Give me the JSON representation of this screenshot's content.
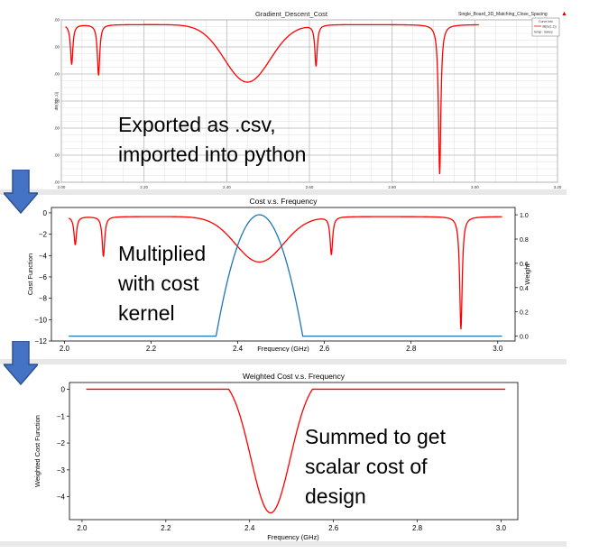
{
  "colors": {
    "red": "#ff0000",
    "blue": "#1f77b4",
    "arrow": "#4472c4"
  },
  "chart_data": [
    {
      "type": "line",
      "title": "Gradient_Descent_Cost",
      "subtitle": "Single_Board_3D_Matching_Close_Spacing",
      "legend_box": {
        "header": "Curve Info",
        "entry": "dB(S(1,1))",
        "setup": "Setup : Sweep"
      },
      "xlabel": "",
      "ylabel": "dB(S(1,1))",
      "xlim": [
        2.0,
        3.2
      ],
      "ylim": [
        -12.0,
        0.0
      ],
      "x_ticks": [
        "2.00",
        "2.20",
        "2.40",
        "2.60",
        "2.80",
        "3.00",
        "3.20"
      ],
      "y_ticks": [
        "0.00",
        "-2.00",
        "-4.00",
        "-6.00",
        "-8.00",
        "-10.00",
        "-12.00"
      ],
      "grid": true,
      "series": [
        {
          "color": "#ff0000",
          "notches": [
            [
              2.025,
              -3.3
            ],
            [
              2.09,
              -4.1
            ],
            [
              2.616,
              -3.4
            ],
            [
              2.915,
              -11.4
            ]
          ],
          "hump": {
            "center": 2.45,
            "depth": -4.6,
            "width": 0.055
          },
          "baseline": -0.35,
          "x_range": [
            2.01,
            3.01
          ]
        }
      ]
    },
    {
      "type": "line",
      "title": "Cost v.s. Frequency",
      "xlabel": "Frequency (GHz)",
      "ylabel": "Cost Function",
      "ylabel_right": "Weight",
      "xlim": [
        1.97,
        3.04
      ],
      "ylim": [
        -12,
        0.5
      ],
      "ylim_right": [
        -0.04,
        1.06
      ],
      "x_ticks": [
        "2.0",
        "2.2",
        "2.4",
        "2.6",
        "2.8",
        "3.0"
      ],
      "y_ticks": [
        "0",
        "−2",
        "−4",
        "−6",
        "−8",
        "−10",
        "−12"
      ],
      "y_ticks_right": [
        "0.0",
        "0.2",
        "0.4",
        "0.6",
        "0.8",
        "1.0"
      ],
      "grid": false,
      "series": [
        {
          "color": "#ff0000",
          "notches": [
            [
              2.025,
              -3.0
            ],
            [
              2.09,
              -4.1
            ],
            [
              2.616,
              -3.9
            ],
            [
              2.915,
              -10.9
            ]
          ],
          "hump": {
            "center": 2.45,
            "depth": -4.6,
            "width": 0.055
          },
          "baseline": -0.35,
          "x_range": [
            2.01,
            3.01
          ]
        },
        {
          "color": "#1f77b4",
          "kernel": {
            "center": 2.45,
            "half_width": 0.1,
            "peak": 1.0
          },
          "x_range": [
            2.01,
            3.01
          ],
          "axis": "right"
        }
      ]
    },
    {
      "type": "line",
      "title": "Weighted Cost v.s. Frequency",
      "xlabel": "Frequency (GHz)",
      "ylabel": "Weighted Cost Function",
      "xlim": [
        1.97,
        3.04
      ],
      "ylim": [
        -4.85,
        0.25
      ],
      "x_ticks": [
        "2.0",
        "2.2",
        "2.4",
        "2.6",
        "2.8",
        "3.0"
      ],
      "y_ticks": [
        "0",
        "−1",
        "−2",
        "−3",
        "−4"
      ],
      "grid": false,
      "series": [
        {
          "color": "#ff0000",
          "weighted": {
            "center": 2.45,
            "half_width": 0.1,
            "depth": -4.6,
            "width": 0.055
          },
          "x_range": [
            2.01,
            3.01
          ]
        }
      ]
    }
  ],
  "captions": {
    "c1": "Exported as .csv,\nimported into python",
    "c2": "Multiplied\nwith cost\nkernel",
    "c3": "Summed to get\nscalar cost of\ndesign"
  }
}
